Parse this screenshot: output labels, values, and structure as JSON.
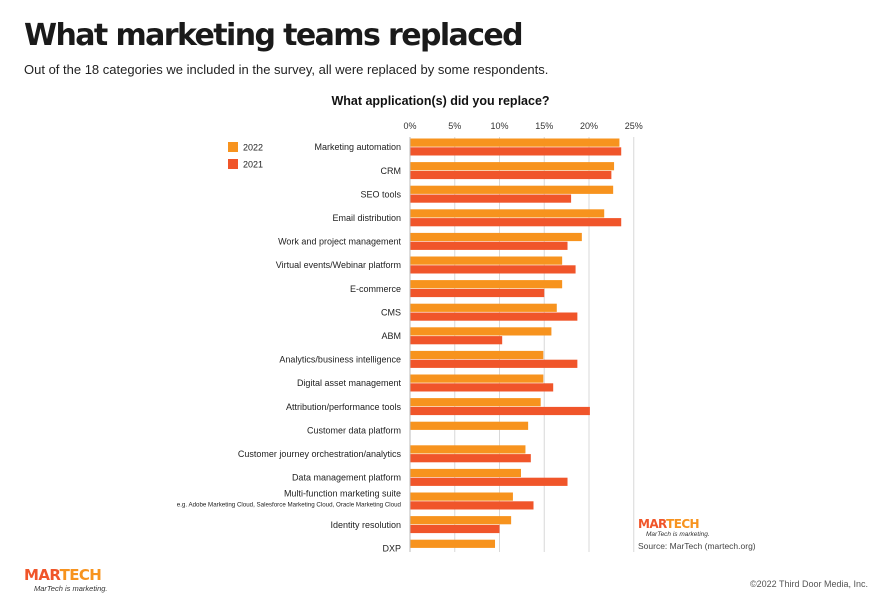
{
  "header": {
    "title": "What marketing teams replaced",
    "subtitle": "Out of the 18 categories we included in the survey, all were replaced by some respondents."
  },
  "chart_data": {
    "type": "bar",
    "orientation": "horizontal",
    "title": "What application(s) did you replace?",
    "xlabel": "",
    "ylabel": "",
    "xlim": [
      0,
      25
    ],
    "x_ticks": [
      "0%",
      "5%",
      "10%",
      "15%",
      "20%",
      "25%"
    ],
    "grid": true,
    "legend_position": "top-left",
    "categories": [
      "Marketing automation",
      "CRM",
      "SEO tools",
      "Email distribution",
      "Work and project management",
      "Virtual events/Webinar platform",
      "E-commerce",
      "CMS",
      "ABM",
      "Analytics/business intelligence",
      "Digital asset management",
      "Attribution/performance tools",
      "Customer data platform",
      "Customer journey orchestration/analytics",
      "Data management platform",
      "Multi-function marketing suite",
      "Identity resolution",
      "DXP"
    ],
    "category_notes": {
      "Multi-function marketing suite": "e.g. Adobe Marketing Cloud, Salesforce Marketing Cloud, Oracle Marketing Cloud"
    },
    "series": [
      {
        "name": "2022",
        "color": "#f7931e",
        "values": [
          23.4,
          22.8,
          22.7,
          21.7,
          19.2,
          17.0,
          17.0,
          16.4,
          15.8,
          14.9,
          14.9,
          14.6,
          13.2,
          12.9,
          12.4,
          11.5,
          11.3,
          9.5
        ]
      },
      {
        "name": "2021",
        "color": "#f0552a",
        "values": [
          23.6,
          22.5,
          18.0,
          23.6,
          17.6,
          18.5,
          15.0,
          18.7,
          10.3,
          18.7,
          16.0,
          20.1,
          null,
          13.5,
          17.6,
          13.8,
          10.0,
          null
        ]
      }
    ]
  },
  "footer": {
    "source": "Source: MarTech (martech.org)",
    "copyright": "©2022 Third Door Media, Inc.",
    "logo": {
      "mar": "MAR",
      "tech": "TECH",
      "tagline": "MarTech is marketing."
    }
  }
}
